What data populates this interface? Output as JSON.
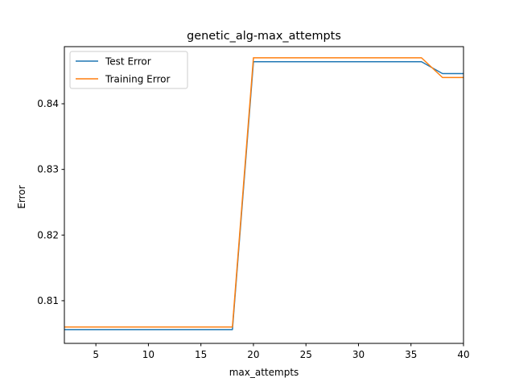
{
  "chart_data": {
    "type": "line",
    "title": "genetic_alg-max_attempts",
    "xlabel": "max_attempts",
    "ylabel": "Error",
    "xlim": [
      2,
      40
    ],
    "ylim": [
      0.8035,
      0.8487
    ],
    "xticks": [
      5,
      10,
      15,
      20,
      25,
      30,
      35,
      40
    ],
    "yticks": [
      0.81,
      0.82,
      0.83,
      0.84
    ],
    "grid": false,
    "legend_position": "top-left",
    "x": [
      2,
      4,
      6,
      8,
      10,
      12,
      14,
      16,
      18,
      20,
      22,
      24,
      26,
      28,
      30,
      32,
      34,
      36,
      38,
      40
    ],
    "series": [
      {
        "name": "Test Error",
        "color": "#1f77b4",
        "values": [
          0.8056,
          0.8056,
          0.8056,
          0.8056,
          0.8056,
          0.8056,
          0.8056,
          0.8056,
          0.8056,
          0.8464,
          0.8464,
          0.8464,
          0.8464,
          0.8464,
          0.8464,
          0.8464,
          0.8464,
          0.8464,
          0.8446,
          0.8446
        ]
      },
      {
        "name": "Training Error",
        "color": "#ff7f0e",
        "values": [
          0.806,
          0.806,
          0.806,
          0.806,
          0.806,
          0.806,
          0.806,
          0.806,
          0.806,
          0.847,
          0.847,
          0.847,
          0.847,
          0.847,
          0.847,
          0.847,
          0.847,
          0.847,
          0.844,
          0.844
        ]
      }
    ]
  }
}
